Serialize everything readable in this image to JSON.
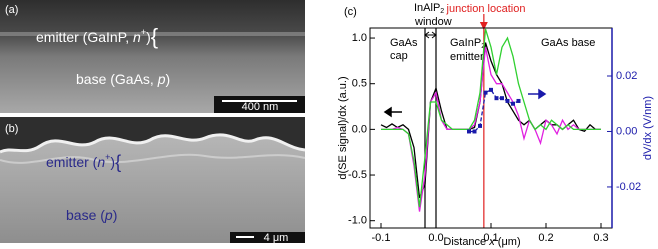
{
  "image_a": {
    "label": "(a)",
    "emitter_text": "emitter (GaInP, ",
    "emitter_n": "n",
    "emitter_sup": "+",
    "emitter_close": ")",
    "brace": "{",
    "base_text": "base (GaAs, ",
    "base_p": "p",
    "base_close": ")",
    "scale": "400 nm"
  },
  "image_b": {
    "label": "(b)",
    "emitter_text": "emitter (",
    "emitter_n": "n",
    "emitter_sup": "+",
    "emitter_close": ")",
    "brace": "{",
    "base_text": "base (",
    "base_p": "p",
    "base_close": ")",
    "scale": "4 μm"
  },
  "chart_data": {
    "type": "line",
    "label": "(c)",
    "xlabel": "Distance ",
    "xlabel_var": "x",
    "xlabel_unit": " (μm)",
    "ylabel": "d(SE signal)/dx (a.u.)",
    "y2label": "dV/dx (V/nm)",
    "y2color": "#1a1aaa",
    "x": [
      -0.1,
      -0.09,
      -0.08,
      -0.07,
      -0.06,
      -0.05,
      -0.04,
      -0.03,
      -0.02,
      -0.01,
      0,
      0.01,
      0.02,
      0.03,
      0.04,
      0.05,
      0.06,
      0.07,
      0.08,
      0.09,
      0.1,
      0.11,
      0.12,
      0.13,
      0.14,
      0.15,
      0.16,
      0.17,
      0.18,
      0.19,
      0.2,
      0.21,
      0.22,
      0.23,
      0.24,
      0.25,
      0.26,
      0.27,
      0.28,
      0.29,
      0.3
    ],
    "xlim": [
      -0.12,
      0.32
    ],
    "xticks": [
      {
        "value": -0.1,
        "label": "-0.1"
      },
      {
        "value": 0,
        "label": "0.0"
      },
      0.1,
      0.2,
      0.3
    ],
    "ylim": [
      -1.08,
      1.11
    ],
    "yticks": [
      {
        "value": -1,
        "label": "-1.0"
      },
      -0.5,
      {
        "value": 0,
        "label": "0.0"
      },
      0.5,
      {
        "value": 1,
        "label": "1.0"
      }
    ],
    "y2lim": [
      -0.0348,
      0.0373
    ],
    "y2ticks": [
      -0.02,
      {
        "value": 0,
        "label": "0.00"
      },
      0.02
    ],
    "series": [
      {
        "color": "#000000",
        "values": [
          0.05,
          0.02,
          0.06,
          0.02,
          0.05,
          0.0,
          -0.2,
          -0.75,
          -0.6,
          0.3,
          0.45,
          0.2,
          0.0,
          0.0,
          0.0,
          0.0,
          0.0,
          0.02,
          0.3,
          0.95,
          0.75,
          0.6,
          0.5,
          0.3,
          0.2,
          0.1,
          0.05,
          0.1,
          0.0,
          0.05,
          0.1,
          0.05,
          0.05,
          0.0,
          0.05,
          0.1,
          0.0,
          -0.02,
          0.05,
          0.0,
          0.0
        ]
      },
      {
        "color": "#e020e0",
        "values": [
          0.0,
          0.0,
          0.0,
          0.02,
          0.0,
          -0.05,
          -0.4,
          -0.9,
          -0.5,
          0.3,
          0.4,
          0.1,
          0.0,
          0.0,
          0.0,
          0.0,
          0.0,
          0.05,
          0.3,
          0.9,
          0.6,
          0.5,
          0.5,
          0.4,
          0.3,
          0.15,
          -0.1,
          0.1,
          0.0,
          -0.15,
          0.1,
          0.05,
          -0.05,
          0.1,
          0.0,
          0.05,
          0.0,
          0.0,
          0.0,
          0.0,
          0.0
        ]
      },
      {
        "color": "#30d030",
        "values": [
          0.0,
          0.0,
          0.0,
          0.0,
          0.0,
          -0.05,
          -0.35,
          -0.85,
          -0.3,
          0.3,
          0.3,
          0.1,
          0.05,
          0.0,
          0.0,
          0.0,
          0.0,
          0.1,
          0.4,
          1.1,
          0.9,
          0.6,
          0.9,
          1.0,
          0.8,
          0.5,
          0.3,
          0.1,
          0.0,
          0.05,
          0.0,
          0.1,
          0.05,
          0.0,
          0.05,
          0.0,
          0.0,
          0.0,
          0.0,
          0.0,
          0.0
        ]
      },
      {
        "color": "#1a1aaa",
        "axis": "y2",
        "dashed": true,
        "markers": true,
        "x": [
          0.06,
          0.07,
          0.08,
          0.09,
          0.1,
          0.11,
          0.12,
          0.13,
          0.14,
          0.15
        ],
        "values": [
          0.0,
          0.0,
          0.002,
          0.014,
          0.015,
          0.012,
          0.012,
          0.011,
          0.01,
          0.011
        ]
      }
    ],
    "vlines": [
      {
        "x": -0.02,
        "color": "#000000"
      },
      {
        "x": 0,
        "color": "#000000"
      },
      {
        "x": 0.087,
        "color": "#e02020"
      }
    ],
    "cap_label": [
      "GaAs",
      "cap"
    ],
    "window_label": {
      "main": "InAlP",
      "sub": "2",
      "second": "window"
    },
    "emitter_label": {
      "main": "GaInP",
      "sub": "2",
      "second": "emitter"
    },
    "base_label": "GaAs base",
    "junction_label": "junction location"
  }
}
